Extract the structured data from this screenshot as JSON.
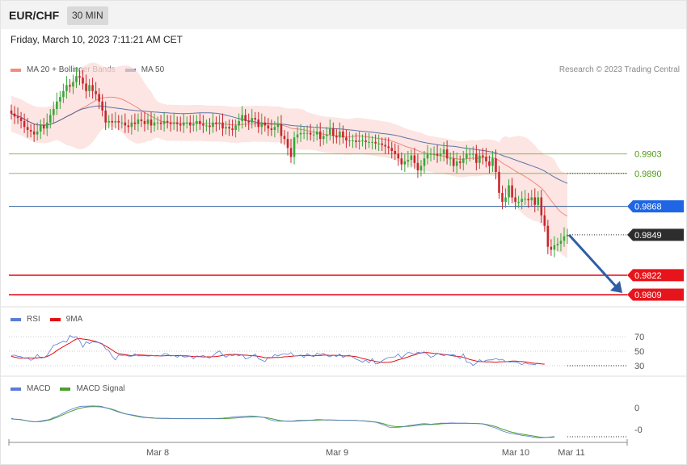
{
  "header": {
    "symbol": "EUR/CHF",
    "timeframe": "30 MIN"
  },
  "timestamp": "Friday, March 10, 2023 7:11:21 AM CET",
  "credit": "Research © 2023 Trading Central",
  "colors": {
    "up": "#3aa63a",
    "down": "#c9262c",
    "band": "#fbdcd8",
    "ma20": "#f08a80",
    "ma50": "#2a4d94",
    "support": "#e4151b",
    "resistance": "#7fb04a",
    "pivot": "#2f5f9e",
    "last": "#2b2b2b",
    "arrow": "#2e5fa6",
    "rsi": "#5b7bd5",
    "rsi_ma": "#e20f0f",
    "macd": "#5b7bd5",
    "macd_signal": "#4aa02c"
  },
  "legends": {
    "main": [
      {
        "label": "MA 20 + Bollinger Bands",
        "color": "#f28b82"
      },
      {
        "label": "MA 50",
        "color": "#35569a"
      }
    ],
    "rsi": [
      {
        "label": "RSI",
        "color": "#5b7bd5"
      },
      {
        "label": "9MA",
        "color": "#e20f0f"
      }
    ],
    "macd": [
      {
        "label": "MACD",
        "color": "#5b7bd5"
      },
      {
        "label": "MACD Signal",
        "color": "#4aa02c"
      }
    ]
  },
  "chart_data": [
    {
      "type": "candlestick",
      "title": "EUR/CHF",
      "timeframe": "30 MIN",
      "x_ticks": [
        "Mar 8",
        "Mar 9",
        "Mar 10",
        "Mar 11"
      ],
      "ylim": [
        0.9802,
        0.9967
      ],
      "levels": [
        {
          "label": "0.9903",
          "value": 0.9903,
          "kind": "resistance"
        },
        {
          "label": "0.9890",
          "value": 0.989,
          "kind": "resistance"
        },
        {
          "label": "0.9868",
          "value": 0.9868,
          "kind": "pivot"
        },
        {
          "label": "0.9849",
          "value": 0.9849,
          "kind": "last"
        },
        {
          "label": "0.9822",
          "value": 0.9822,
          "kind": "support"
        },
        {
          "label": "0.9809",
          "value": 0.9809,
          "kind": "support"
        }
      ],
      "projection": {
        "from": 0.9849,
        "to": 0.9809
      },
      "close": [
        0.993,
        0.9928,
        0.9927,
        0.9925,
        0.9921,
        0.9919,
        0.9918,
        0.9916,
        0.9918,
        0.9922,
        0.992,
        0.9924,
        0.9929,
        0.9933,
        0.9938,
        0.9941,
        0.9945,
        0.9949,
        0.9948,
        0.9951,
        0.9955,
        0.9954,
        0.995,
        0.9945,
        0.9949,
        0.9945,
        0.9943,
        0.9938,
        0.9932,
        0.9924,
        0.9925,
        0.9924,
        0.9925,
        0.9924,
        0.9924,
        0.9922,
        0.9921,
        0.9924,
        0.9923,
        0.9926,
        0.9925,
        0.9923,
        0.9926,
        0.9922,
        0.9924,
        0.9924,
        0.9923,
        0.9925,
        0.9924,
        0.9923,
        0.9924,
        0.9923,
        0.9922,
        0.9924,
        0.9924,
        0.9922,
        0.9923,
        0.9925,
        0.9923,
        0.9922,
        0.9922,
        0.9921,
        0.9924,
        0.9923,
        0.9924,
        0.992,
        0.9921,
        0.992,
        0.9919,
        0.9922,
        0.9925,
        0.9929,
        0.9925,
        0.9924,
        0.9927,
        0.9926,
        0.9921,
        0.9924,
        0.9922,
        0.992,
        0.9919,
        0.9921,
        0.9923,
        0.9915,
        0.9913,
        0.9907,
        0.9901,
        0.9914,
        0.9916,
        0.9917,
        0.9917,
        0.9917,
        0.9916,
        0.9916,
        0.9918,
        0.9913,
        0.9915,
        0.9916,
        0.992,
        0.9915,
        0.9914,
        0.9918,
        0.9914,
        0.9912,
        0.9912,
        0.9912,
        0.9911,
        0.9912,
        0.9912,
        0.9911,
        0.9911,
        0.9911,
        0.991,
        0.991,
        0.9909,
        0.9908,
        0.9907,
        0.9905,
        0.9903,
        0.99,
        0.9896,
        0.9898,
        0.9899,
        0.9902,
        0.9897,
        0.9892,
        0.9895,
        0.99,
        0.9903,
        0.9903,
        0.9903,
        0.9902,
        0.9903,
        0.9906,
        0.99,
        0.99,
        0.9895,
        0.9898,
        0.9897,
        0.99,
        0.9903,
        0.9903,
        0.9903,
        0.9897,
        0.9902,
        0.9901,
        0.9898,
        0.9895,
        0.99,
        0.9891,
        0.9877,
        0.9871,
        0.9874,
        0.9882,
        0.9874,
        0.9871,
        0.9871,
        0.9873,
        0.9873,
        0.9872,
        0.9874,
        0.9869,
        0.9874,
        0.9862,
        0.9855,
        0.9841,
        0.9839,
        0.9842,
        0.9843,
        0.9845,
        0.9848,
        0.9849
      ],
      "rsi": [
        44,
        44.5,
        43,
        42.5,
        40,
        40.4,
        37.4,
        39.7,
        45.4,
        40.5,
        41.1,
        44.2,
        51.4,
        58.2,
        59.3,
        61.7,
        63.7,
        62.4,
        71.6,
        69,
        69.9,
        64.4,
        55.3,
        62.9,
        60.6,
        62.9,
        62.3,
        61.8,
        60.3,
        53.1,
        50.9,
        43,
        37.9,
        44.8,
        44.2,
        44.6,
        43.2,
        43,
        46.3,
        43.5,
        43.4,
        43.8,
        43.2,
        43.7,
        43.9,
        44.2,
        43,
        46.8,
        46.1,
        43.2,
        44.1,
        41.7,
        44.6,
        42,
        42.1,
        43.5,
        39.7,
        43.5,
        42.8,
        44,
        42,
        40.5,
        43.7,
        47.8,
        50.2,
        45.1,
        41.7,
        44.9,
        43.7,
        45.3,
        43.6,
        45.6,
        39.3,
        40.7,
        43.4,
        45.9,
        39.5,
        37.8,
        35.6,
        41.5,
        41.1,
        45.2,
        43.5,
        45.4,
        46.6,
        45.5,
        48.1,
        43.3,
        43.5,
        44.7,
        41.3,
        46.7,
        43.9,
        42.3,
        47.3,
        45.3,
        47,
        44,
        42.1,
        44.7,
        42.6,
        46.1,
        41.2,
        43.8,
        44.5,
        41.8,
        39,
        37.2,
        34.9,
        37.8,
        33.8,
        39.8,
        32.5,
        33.2,
        36.7,
        39.4,
        41.2,
        41.7,
        42.2,
        46.1,
        40.4,
        44.7,
        48.3,
        47.4,
        45.4,
        48.7,
        47.5,
        49.1,
        45.5,
        41.5,
        43.3,
        47.3,
        45.1,
        43.9,
        45.3,
        44.7,
        45.3,
        42.7,
        39.8,
        46.3,
        35,
        34.4,
        30.4,
        33.2,
        38.3,
        35.2,
        37.4,
        38,
        38.1,
        40.1,
        37.8,
        38.9,
        35.8,
        35.2,
        35.3,
        35.2,
        33.9,
        31.4,
        34,
        32.3,
        32.1,
        31.4,
        34
      ],
      "rsi_ma": [
        42.9,
        41.8,
        40.9,
        40.5,
        40.6,
        40.8,
        40.6,
        40.6,
        40.6,
        41.5,
        41.3,
        42.7,
        44.8,
        47.5,
        50.8,
        53.7,
        56.1,
        59,
        61.1,
        64.2,
        66.7,
        67.6,
        66.7,
        66.1,
        65.4,
        64.3,
        63.3,
        61.6,
        59.5,
        57.1,
        54.6,
        51.7,
        48.6,
        46.5,
        45.8,
        45.2,
        44.4,
        43.7,
        44.4,
        44.9,
        44.7,
        44.4,
        44.2,
        44.1,
        43.7,
        43.7,
        43.5,
        43.7,
        44,
        44,
        43.8,
        43.9,
        43.9,
        43.6,
        43.7,
        43.1,
        42.7,
        42.5,
        42.5,
        42.1,
        42.2,
        42.2,
        42.3,
        42.7,
        43.3,
        44.2,
        44.9,
        45.4,
        45.4,
        45.6,
        45.2,
        44.6,
        44.5,
        44.1,
        43.9,
        43.5,
        42.9,
        42.1,
        41.1,
        40.9,
        40.8,
        41.3,
        41.3,
        41.5,
        42.3,
        42.5,
        42.9,
        43.3,
        43.6,
        44.1,
        43.9,
        44.2,
        43.8,
        43.6,
        44,
        44,
        44.6,
        44.6,
        44.2,
        44.4,
        44.1,
        44.4,
        43.5,
        43.6,
        43.5,
        42.9,
        42.4,
        41.3,
        40,
        39.1,
        37.7,
        37,
        35.9,
        35.1,
        34.5,
        34.5,
        34.7,
        35.3,
        36.5,
        38.2,
        39.2,
        40.6,
        42.1,
        43.8,
        44.8,
        46.5,
        47.6,
        48.2,
        48.1,
        47.5,
        47,
        46.7,
        46.1,
        45.5,
        45,
        44.3,
        43.4,
        42.8,
        42.6,
        41.4,
        40.3,
        38.5,
        37.4,
        36.4,
        35.7,
        35.6,
        35.3,
        35.3,
        35.1,
        34.8,
        35.2,
        35.5,
        35.6,
        35.9,
        36.4,
        36.4,
        36,
        35.7,
        35.2,
        34.4,
        33.8,
        33.3,
        33.1,
        32.5,
        32.1
      ],
      "macd": [
        -6,
        -6.4,
        -6.5,
        -6.7,
        -7.1,
        -7.5,
        -7.8,
        -7.9,
        -7.8,
        -7.5,
        -7.2,
        -6.9,
        -6.4,
        -5.5,
        -4.9,
        -4,
        -3,
        -2.1,
        -1.3,
        -0.5,
        0.1,
        0.6,
        0.8,
        0.8,
        0.9,
        1,
        0.9,
        0.9,
        0.6,
        -0.1,
        -0.6,
        -1.2,
        -1.8,
        -2.5,
        -3,
        -3.5,
        -3.8,
        -4,
        -4.3,
        -4.7,
        -5,
        -5.3,
        -5.5,
        -5.6,
        -5.8,
        -5.9,
        -6,
        -6,
        -6,
        -6.1,
        -6.1,
        -6.2,
        -6.2,
        -6.2,
        -6.2,
        -6.2,
        -6.2,
        -6.2,
        -6.2,
        -6.2,
        -6.2,
        -6.2,
        -6.2,
        -6.1,
        -6,
        -5.9,
        -5.7,
        -5.5,
        -5.3,
        -5.1,
        -5,
        -4.9,
        -4.8,
        -4.7,
        -4.7,
        -4.8,
        -5,
        -5.3,
        -5.7,
        -6.4,
        -7,
        -7.5,
        -7.6,
        -7.6,
        -7.6,
        -7.6,
        -7.6,
        -7.4,
        -7.2,
        -7.1,
        -7.1,
        -7,
        -7,
        -6.9,
        -6.7,
        -6.7,
        -6.8,
        -6.9,
        -6.9,
        -7,
        -7.1,
        -7.1,
        -7.1,
        -7.1,
        -7.1,
        -7.1,
        -7.2,
        -7.3,
        -7.4,
        -7.6,
        -7.8,
        -8,
        -8.2,
        -8.7,
        -9.4,
        -10,
        -10.9,
        -11.2,
        -11.2,
        -11.1,
        -10.9,
        -10.6,
        -10.1,
        -9.9,
        -9.6,
        -9.4,
        -9.1,
        -9,
        -9.1,
        -9.3,
        -9.1,
        -8.9,
        -8.7,
        -8.7,
        -8.7,
        -8.6,
        -8.6,
        -8.7,
        -8.7,
        -8.7,
        -8.7,
        -8.8,
        -8.8,
        -8.9,
        -9,
        -9.2,
        -9.7,
        -10.3,
        -10.9,
        -11.5,
        -12.4,
        -13.1,
        -13.7,
        -14.2,
        -14.6,
        -14.9,
        -15.2,
        -15.6,
        -15.8,
        -16.1,
        -16.4,
        -16.7,
        -16.9,
        -16.9,
        -16.8,
        -16.6,
        -16.4,
        -16.2
      ],
      "macd_signal": [
        -6.3,
        -6.5,
        -6.6,
        -6.8,
        -7.1,
        -7.4,
        -7.7,
        -7.9,
        -7.9,
        -7.8,
        -7.5,
        -7.2,
        -6.8,
        -6.1,
        -5.5,
        -4.7,
        -3.9,
        -3.1,
        -2.3,
        -1.6,
        -0.9,
        -0.4,
        0,
        0.3,
        0.5,
        0.6,
        0.6,
        0.5,
        0.3,
        0,
        -0.4,
        -0.9,
        -1.5,
        -2.2,
        -2.8,
        -3.4,
        -3.8,
        -4.2,
        -4.6,
        -5,
        -5.3,
        -5.5,
        -5.7,
        -5.8,
        -5.9,
        -6,
        -6,
        -6,
        -6.1,
        -6.1,
        -6.1,
        -6.2,
        -6.2,
        -6.2,
        -6.2,
        -6.2,
        -6.2,
        -6.2,
        -6.2,
        -6.2,
        -6.2,
        -6.2,
        -6.2,
        -6.2,
        -6.2,
        -6.2,
        -6.1,
        -6,
        -5.9,
        -5.8,
        -5.6,
        -5.5,
        -5.4,
        -5.3,
        -5.2,
        -5.2,
        -5.2,
        -5.3,
        -5.5,
        -5.8,
        -6.2,
        -6.6,
        -7,
        -7.3,
        -7.5,
        -7.6,
        -7.6,
        -7.6,
        -7.5,
        -7.4,
        -7.3,
        -7.2,
        -7.1,
        -7.1,
        -7,
        -6.9,
        -6.9,
        -6.9,
        -6.9,
        -6.9,
        -7,
        -7.1,
        -7.1,
        -7.2,
        -7.2,
        -7.2,
        -7.2,
        -7.3,
        -7.4,
        -7.5,
        -7.7,
        -7.9,
        -8.1,
        -8.4,
        -8.8,
        -9.3,
        -9.9,
        -10.3,
        -10.6,
        -10.7,
        -10.7,
        -10.6,
        -10.5,
        -10.3,
        -10.1,
        -9.9,
        -9.7,
        -9.5,
        -9.5,
        -9.5,
        -9.4,
        -9.3,
        -9.1,
        -9,
        -8.9,
        -8.8,
        -8.8,
        -8.8,
        -8.8,
        -8.8,
        -8.8,
        -8.8,
        -8.9,
        -8.9,
        -9,
        -9.1,
        -9.4,
        -9.8,
        -10.2,
        -10.7,
        -11.4,
        -12.1,
        -12.7,
        -13.3,
        -13.8,
        -14.2,
        -14.6,
        -14.9,
        -15.2,
        -15.5,
        -15.8,
        -16.1,
        -16.4,
        -16.6,
        -16.7,
        -16.7,
        -16.7,
        -16.6
      ],
      "rsi_levels": [
        "70",
        "50",
        "30"
      ],
      "macd_levels": [
        "0",
        "-0"
      ]
    }
  ]
}
